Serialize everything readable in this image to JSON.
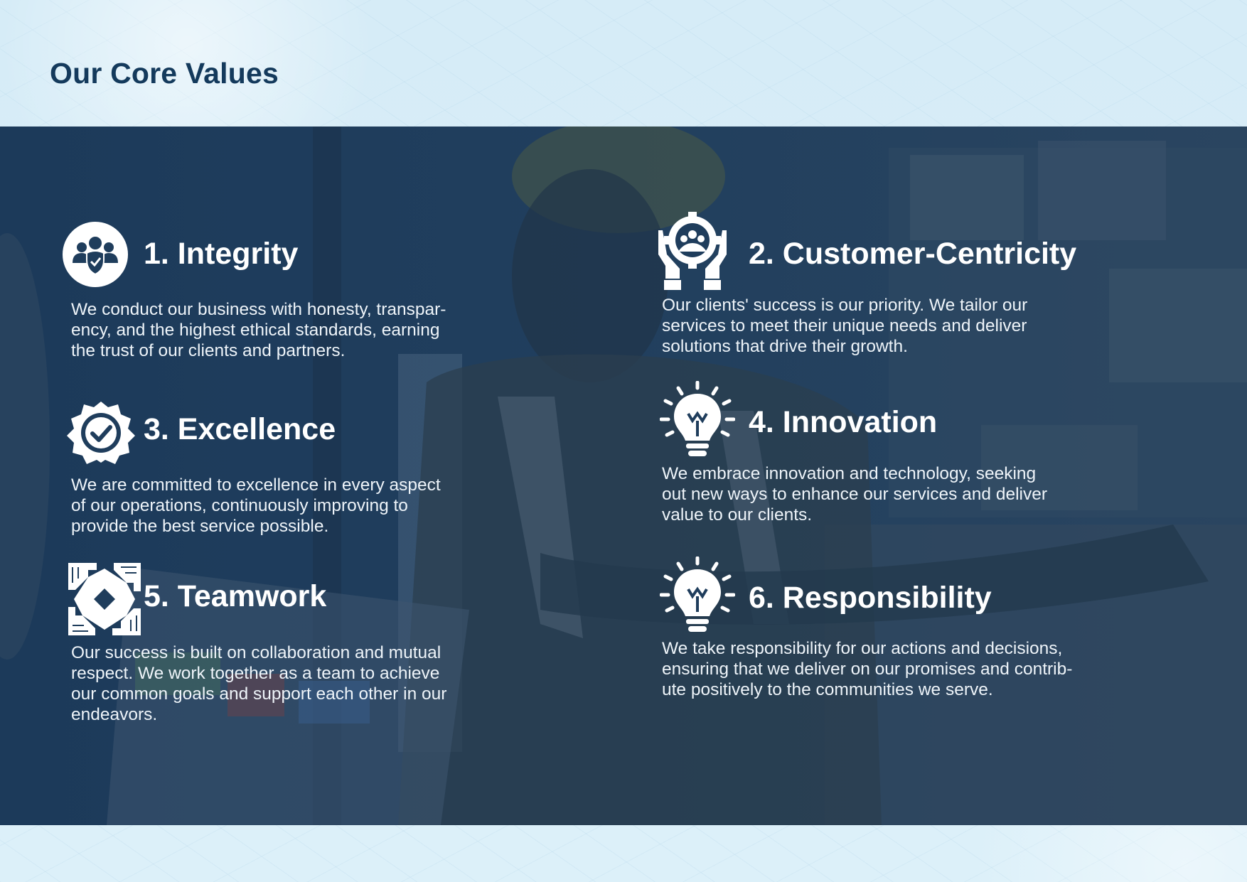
{
  "page": {
    "title": "Our Core Values"
  },
  "colors": {
    "title": "#143a5c",
    "overlay": "#1f3d5c",
    "text": "#ffffff",
    "background": "#d7edf7"
  },
  "values": [
    {
      "title": "1. Integrity",
      "text": "We conduct our business with honesty, transpar-\nency, and the highest ethical standards, earning\nthe trust of our clients and partners.",
      "icon": "people-shield-icon"
    },
    {
      "title": "2. Customer-Centricity",
      "text": "Our clients' success is our priority. We tailor our\nservices to meet their unique needs and deliver\nsolutions that drive their growth.",
      "icon": "hands-gear-people-icon"
    },
    {
      "title": "3. Excellence",
      "text": "We are committed to excellence in every aspect\nof our operations, continuously improving to\nprovide the best service possible.",
      "icon": "badge-check-icon"
    },
    {
      "title": "4. Innovation",
      "text": "We embrace innovation and technology, seeking\nout new ways to enhance our services and deliver\nvalue to our clients.",
      "icon": "lightbulb-icon"
    },
    {
      "title": "5. Teamwork",
      "text": "Our success is built on collaboration and mutual\nrespect. We work together as a team to achieve\nour common goals and support each other in our\nendeavors.",
      "icon": "hands-circle-icon"
    },
    {
      "title": "6. Responsibility",
      "text": "We take responsibility for our actions and decisions,\nensuring that we deliver on our promises and contrib-\nute positively to the communities we serve.",
      "icon": "lightbulb-icon"
    }
  ]
}
